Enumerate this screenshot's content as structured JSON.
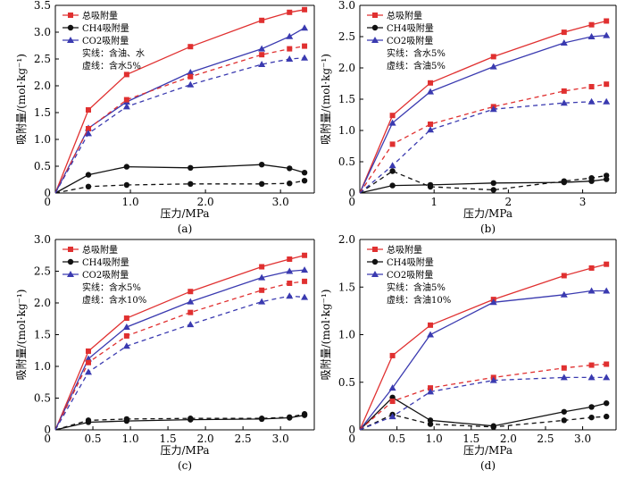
{
  "colors": {
    "total": "#e03030",
    "ch4": "#111111",
    "co2": "#3a3ab0",
    "axis": "#000000"
  },
  "chart_data": [
    {
      "type": "line",
      "panel_label": "(a)",
      "xlabel": "压力/MPa",
      "ylabel": "吸附量/(mol·kg⁻¹)",
      "xlim": [
        0,
        3.45
      ],
      "ylim": [
        0,
        3.5
      ],
      "yticks": [
        "0",
        "0.5",
        "1.0",
        "1.5",
        "2.0",
        "2.5",
        "3.0",
        "3.5"
      ],
      "legend": {
        "entries": [
          "总吸附量",
          "CH4吸附量",
          "CO2吸附量"
        ],
        "notes": [
          "实线：含油、水",
          "虚线：含水5%"
        ]
      },
      "x": [
        0.44,
        0.95,
        1.8,
        2.75,
        3.12,
        3.32
      ],
      "series": [
        {
          "name": "总吸附量",
          "style": "solid",
          "marker": "square",
          "values": [
            1.55,
            2.21,
            2.73,
            3.22,
            3.37,
            3.42
          ]
        },
        {
          "name": "CH4吸附量",
          "style": "solid",
          "marker": "circle",
          "values": [
            0.34,
            0.49,
            0.47,
            0.53,
            0.46,
            0.38
          ]
        },
        {
          "name": "CO2吸附量",
          "style": "solid",
          "marker": "triangle",
          "values": [
            1.21,
            1.7,
            2.25,
            2.69,
            2.92,
            3.08
          ]
        },
        {
          "name": "总吸附量",
          "style": "dashed",
          "marker": "square",
          "values": [
            1.2,
            1.74,
            2.17,
            2.58,
            2.69,
            2.74
          ]
        },
        {
          "name": "CH4吸附量",
          "style": "dashed",
          "marker": "circle",
          "values": [
            0.12,
            0.15,
            0.17,
            0.17,
            0.18,
            0.23
          ]
        },
        {
          "name": "CO2吸附量",
          "style": "dashed",
          "marker": "triangle",
          "values": [
            1.11,
            1.61,
            2.02,
            2.4,
            2.5,
            2.52
          ]
        }
      ]
    },
    {
      "type": "line",
      "panel_label": "(b)",
      "xlabel": "压力/MPa",
      "ylabel": "吸附量/(mol·kg⁻¹)",
      "xlim": [
        0,
        3.45
      ],
      "ylim": [
        0,
        3.0
      ],
      "yticks": [
        "0",
        "0.5",
        "1.0",
        "1.5",
        "2.0",
        "2.5",
        "3.0"
      ],
      "legend": {
        "entries": [
          "总吸附量",
          "CH4吸附量",
          "CO2吸附量"
        ],
        "notes": [
          "实线：含水5%",
          "虚线：含油5%"
        ]
      },
      "x": [
        0.44,
        0.95,
        1.8,
        2.75,
        3.12,
        3.32
      ],
      "series": [
        {
          "name": "总吸附量",
          "style": "solid",
          "marker": "square",
          "values": [
            1.24,
            1.76,
            2.18,
            2.57,
            2.69,
            2.75
          ]
        },
        {
          "name": "CH4吸附量",
          "style": "solid",
          "marker": "circle",
          "values": [
            0.12,
            0.13,
            0.16,
            0.17,
            0.19,
            0.22
          ]
        },
        {
          "name": "CO2吸附量",
          "style": "solid",
          "marker": "triangle",
          "values": [
            1.12,
            1.62,
            2.02,
            2.4,
            2.5,
            2.52
          ]
        },
        {
          "name": "总吸附量",
          "style": "dashed",
          "marker": "square",
          "values": [
            0.78,
            1.1,
            1.38,
            1.63,
            1.7,
            1.74
          ]
        },
        {
          "name": "CH4吸附量",
          "style": "dashed",
          "marker": "circle",
          "values": [
            0.35,
            0.1,
            0.05,
            0.19,
            0.24,
            0.28
          ]
        },
        {
          "name": "CO2吸附量",
          "style": "dashed",
          "marker": "triangle",
          "values": [
            0.44,
            1.01,
            1.34,
            1.44,
            1.46,
            1.46
          ]
        }
      ]
    },
    {
      "type": "line",
      "panel_label": "(c)",
      "xlabel": "压力/MPa",
      "ylabel": "吸附量/(mol·kg⁻¹)",
      "xlim": [
        0,
        3.45
      ],
      "ylim": [
        0,
        3.0
      ],
      "yticks": [
        "0",
        "0.5",
        "1.0",
        "1.5",
        "2.0",
        "2.5",
        "3.0"
      ],
      "legend": {
        "entries": [
          "总吸附量",
          "CH4吸附量",
          "CO2吸附量"
        ],
        "notes": [
          "实线：含水5%",
          "虚线：含水10%"
        ]
      },
      "x": [
        0.44,
        0.95,
        1.8,
        2.75,
        3.12,
        3.32
      ],
      "series": [
        {
          "name": "总吸附量",
          "style": "solid",
          "marker": "square",
          "values": [
            1.24,
            1.76,
            2.18,
            2.57,
            2.69,
            2.75
          ]
        },
        {
          "name": "CH4吸附量",
          "style": "solid",
          "marker": "circle",
          "values": [
            0.12,
            0.14,
            0.16,
            0.17,
            0.19,
            0.23
          ]
        },
        {
          "name": "CO2吸附量",
          "style": "solid",
          "marker": "triangle",
          "values": [
            1.12,
            1.62,
            2.02,
            2.4,
            2.5,
            2.52
          ]
        },
        {
          "name": "总吸附量",
          "style": "dashed",
          "marker": "square",
          "values": [
            1.06,
            1.48,
            1.85,
            2.2,
            2.31,
            2.34
          ]
        },
        {
          "name": "CH4吸附量",
          "style": "dashed",
          "marker": "circle",
          "values": [
            0.15,
            0.17,
            0.18,
            0.18,
            0.2,
            0.25
          ]
        },
        {
          "name": "CO2吸附量",
          "style": "dashed",
          "marker": "triangle",
          "values": [
            0.91,
            1.32,
            1.66,
            2.02,
            2.11,
            2.09
          ]
        }
      ]
    },
    {
      "type": "line",
      "panel_label": "(d)",
      "xlabel": "压力/MPa",
      "ylabel": "吸附量/(mol·kg⁻¹)",
      "xlim": [
        0,
        3.45
      ],
      "ylim": [
        0,
        2.0
      ],
      "yticks": [
        "0",
        "0.5",
        "1.0",
        "1.5",
        "2.0"
      ],
      "legend": {
        "entries": [
          "总吸附量",
          "CH4吸附量",
          "CO2吸附量"
        ],
        "notes": [
          "实线：含油5%",
          "虚线：含油10%"
        ]
      },
      "x": [
        0.44,
        0.95,
        1.8,
        2.75,
        3.12,
        3.32
      ],
      "series": [
        {
          "name": "总吸附量",
          "style": "solid",
          "marker": "square",
          "values": [
            0.78,
            1.1,
            1.37,
            1.62,
            1.7,
            1.74
          ]
        },
        {
          "name": "CH4吸附量",
          "style": "solid",
          "marker": "circle",
          "values": [
            0.34,
            0.1,
            0.04,
            0.19,
            0.24,
            0.28
          ]
        },
        {
          "name": "CO2吸附量",
          "style": "solid",
          "marker": "triangle",
          "values": [
            0.44,
            1.0,
            1.34,
            1.42,
            1.46,
            1.46
          ]
        },
        {
          "name": "总吸附量",
          "style": "dashed",
          "marker": "square",
          "values": [
            0.3,
            0.44,
            0.55,
            0.65,
            0.68,
            0.69
          ]
        },
        {
          "name": "CH4吸附量",
          "style": "dashed",
          "marker": "circle",
          "values": [
            0.16,
            0.06,
            0.03,
            0.1,
            0.13,
            0.14
          ]
        },
        {
          "name": "CO2吸附量",
          "style": "dashed",
          "marker": "triangle",
          "values": [
            0.14,
            0.4,
            0.52,
            0.55,
            0.55,
            0.55
          ]
        }
      ]
    }
  ]
}
